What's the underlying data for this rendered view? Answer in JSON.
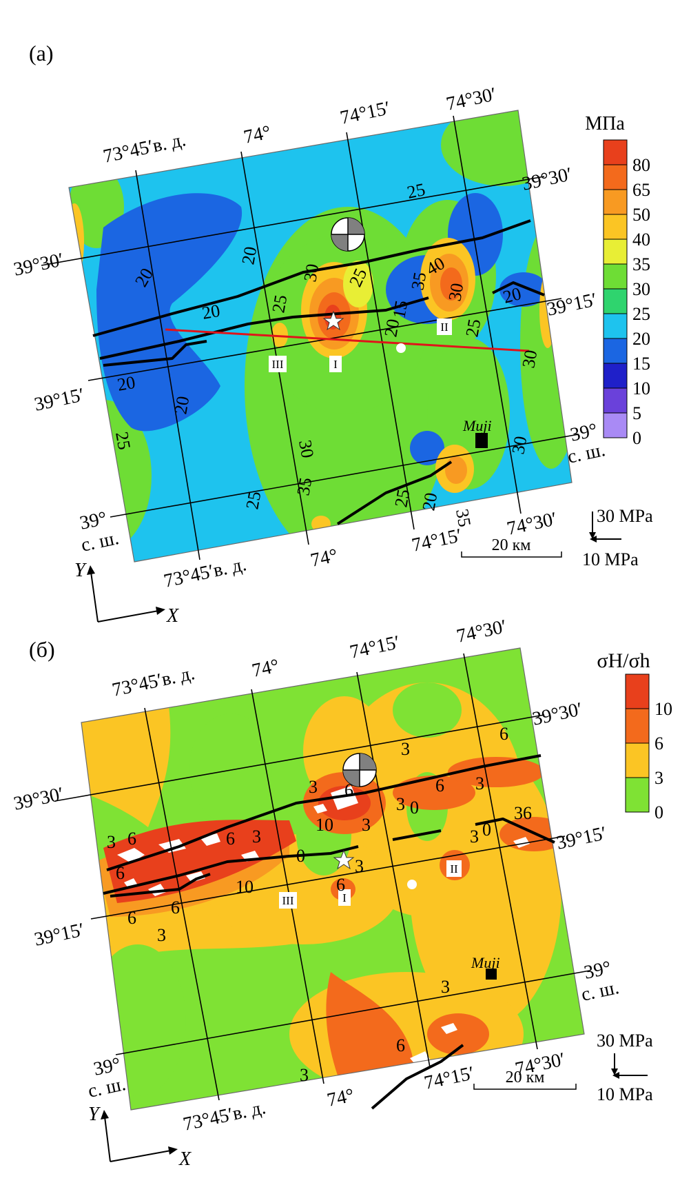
{
  "panels": [
    {
      "label": "(а)",
      "legend": {
        "title": "MПa",
        "levels": [
          "80",
          "65",
          "50",
          "40",
          "35",
          "30",
          "25",
          "20",
          "15",
          "10",
          "5",
          "0"
        ],
        "colors": [
          "#e8401c",
          "#f36a1c",
          "#f89a22",
          "#fbc524",
          "#e8ee35",
          "#6edd35",
          "#2fd46e",
          "#1ec3ee",
          "#1b66e2",
          "#1f20c9",
          "#6a41da",
          "#a98af5"
        ]
      },
      "coords": {
        "lon_top": [
          "73°45′в. д.",
          "74°",
          "74°15′",
          "74°30′"
        ],
        "lon_bottom": [
          "73°45′в. д.",
          "74°",
          "74°15′",
          "74°30′"
        ],
        "lat_left": [
          "39°30′",
          "39°15′",
          "39°",
          "с. ш."
        ],
        "lat_right": [
          "39°30′",
          "39°15′",
          "39°",
          "с. ш."
        ]
      },
      "contour_labels": [
        "25",
        "20",
        "20",
        "20",
        "20",
        "25",
        "20",
        "30",
        "25",
        "35",
        "30",
        "25",
        "25",
        "20",
        "15",
        "35",
        "40",
        "30",
        "25",
        "20",
        "30",
        "30",
        "35",
        "20",
        "25"
      ],
      "zone_labels": [
        "I",
        "II",
        "III"
      ],
      "place": "Muji",
      "scale": "20 км",
      "stress_arrows": [
        "30 MPa",
        "10 MPa"
      ],
      "axes": [
        "Y",
        "X"
      ]
    },
    {
      "label": "(б)",
      "legend": {
        "title": "σH/σh",
        "levels": [
          "10",
          "6",
          "3",
          "0"
        ],
        "colors": [
          "#e8401c",
          "#f36a1c",
          "#fbc524",
          "#7fe234"
        ]
      },
      "coords": {
        "lon_top": [
          "73°45′в. д.",
          "74°",
          "74°15′",
          "74°30′"
        ],
        "lon_bottom": [
          "73°45′в. д.",
          "74°",
          "74°15′",
          "74°30′"
        ],
        "lat_left": [
          "39°30′",
          "39°15′",
          "39°",
          "с. ш."
        ],
        "lat_right": [
          "39°30′",
          "39°15′",
          "39°",
          "с. ш."
        ]
      },
      "contour_labels": [
        "3",
        "6",
        "6",
        "6",
        "3",
        "10",
        "6",
        "6",
        "3",
        "3",
        "6",
        "0",
        "10",
        "3",
        "0",
        "6",
        "3",
        "3",
        "3",
        "6",
        "6",
        "3",
        "36",
        "3",
        "0",
        "3",
        "6",
        "3"
      ],
      "zone_labels": [
        "I",
        "II",
        "III"
      ],
      "place": "Muji",
      "scale": "20 км",
      "stress_arrows": [
        "30 MPa",
        "10 MPa"
      ],
      "axes": [
        "Y",
        "X"
      ]
    }
  ]
}
